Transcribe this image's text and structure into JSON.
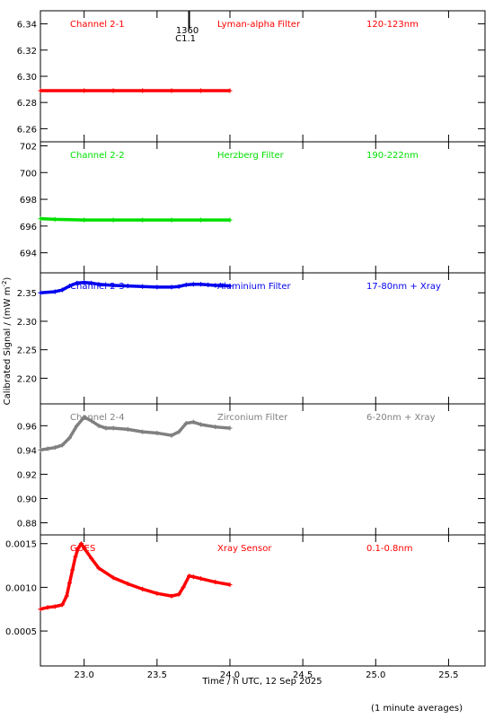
{
  "ylabel": "Calibrated Signal / (mW m",
  "ylabel_sup": "-2",
  "ylabel_close": ")",
  "xlabel": "Time / h UTC, 12 Sep 2025",
  "footnote": "(1 minute averages)",
  "event_marker": {
    "x": 23.72,
    "top": "1360",
    "bottom": "C1.1"
  },
  "chart_data": [
    {
      "type": "scatter",
      "channel": "Channel 2-1",
      "filter": "Lyman-alpha Filter",
      "range": "120-123nm",
      "color": "#ff0000",
      "ylim": [
        6.25,
        6.35
      ],
      "yticks": [
        6.26,
        6.28,
        6.3,
        6.32,
        6.34
      ],
      "ytick_labels": [
        "6.26",
        "6.28",
        "6.30",
        "6.32",
        "6.34"
      ],
      "xlim": [
        22.7,
        25.75
      ],
      "xticks": [
        23.0,
        23.5,
        24.0,
        24.5,
        25.0,
        25.5
      ],
      "xtick_labels": [
        "23.0",
        "23.5",
        "24.0",
        "24.5",
        "25.0",
        "25.5"
      ],
      "x": [
        22.7,
        23.0,
        23.2,
        23.4,
        23.6,
        23.8,
        24.0
      ],
      "y": [
        6.289,
        6.289,
        6.289,
        6.289,
        6.289,
        6.289,
        6.289
      ]
    },
    {
      "type": "scatter",
      "channel": "Channel 2-2",
      "filter": "Herzberg Filter",
      "range": "190-222nm",
      "color": "#00e000",
      "ylim": [
        692.5,
        702.3
      ],
      "yticks": [
        694,
        696,
        698,
        700,
        702
      ],
      "ytick_labels": [
        "694",
        "696",
        "698",
        "700",
        "702"
      ],
      "xlim": [
        22.7,
        25.75
      ],
      "xticks": [
        23.0,
        23.5,
        24.0,
        24.5,
        25.0,
        25.5
      ],
      "xtick_labels": [
        "23.0",
        "23.5",
        "24.0",
        "24.5",
        "25.0",
        "25.5"
      ],
      "x": [
        22.7,
        22.8,
        23.0,
        23.2,
        23.4,
        23.6,
        23.8,
        24.0
      ],
      "y": [
        696.55,
        696.5,
        696.45,
        696.45,
        696.45,
        696.45,
        696.45,
        696.45
      ]
    },
    {
      "type": "scatter",
      "channel": "Channel 2-3",
      "filter": "Aluminium Filter",
      "range": "17-80nm + Xray",
      "color": "#0000ee",
      "ylim": [
        2.155,
        2.385
      ],
      "yticks": [
        2.2,
        2.25,
        2.3,
        2.35
      ],
      "ytick_labels": [
        "2.20",
        "2.25",
        "2.30",
        "2.35"
      ],
      "xlim": [
        22.7,
        25.75
      ],
      "xticks": [
        23.0,
        23.5,
        24.0,
        24.5,
        25.0,
        25.5
      ],
      "xtick_labels": [
        "23.0",
        "23.5",
        "24.0",
        "24.5",
        "25.0",
        "25.5"
      ],
      "x": [
        22.7,
        22.8,
        22.85,
        22.9,
        22.95,
        23.0,
        23.05,
        23.1,
        23.2,
        23.3,
        23.4,
        23.5,
        23.6,
        23.65,
        23.7,
        23.75,
        23.8,
        23.85,
        23.9,
        23.95,
        24.0
      ],
      "y": [
        2.35,
        2.352,
        2.355,
        2.362,
        2.367,
        2.368,
        2.367,
        2.365,
        2.363,
        2.362,
        2.361,
        2.36,
        2.36,
        2.361,
        2.364,
        2.365,
        2.365,
        2.364,
        2.363,
        2.363,
        2.362
      ]
    },
    {
      "type": "scatter",
      "channel": "Channel 2-4",
      "filter": "Zirconium Filter",
      "range": "6-20nm + Xray",
      "color": "#808080",
      "ylim": [
        0.87,
        0.978
      ],
      "yticks": [
        0.88,
        0.9,
        0.92,
        0.94,
        0.96
      ],
      "ytick_labels": [
        "0.88",
        "0.90",
        "0.92",
        "0.94",
        "0.96"
      ],
      "xlim": [
        22.7,
        25.75
      ],
      "xticks": [
        23.0,
        23.5,
        24.0,
        24.5,
        25.0,
        25.5
      ],
      "xtick_labels": [
        "23.0",
        "23.5",
        "24.0",
        "24.5",
        "25.0",
        "25.5"
      ],
      "x": [
        22.7,
        22.75,
        22.8,
        22.85,
        22.9,
        22.95,
        23.0,
        23.05,
        23.1,
        23.15,
        23.2,
        23.3,
        23.4,
        23.5,
        23.6,
        23.65,
        23.7,
        23.75,
        23.8,
        23.9,
        24.0
      ],
      "y": [
        0.94,
        0.941,
        0.942,
        0.944,
        0.95,
        0.96,
        0.967,
        0.964,
        0.96,
        0.958,
        0.958,
        0.957,
        0.955,
        0.954,
        0.952,
        0.955,
        0.962,
        0.963,
        0.961,
        0.959,
        0.958
      ]
    },
    {
      "type": "scatter",
      "channel": "GOES",
      "filter": "Xray Sensor",
      "range": "0.1-0.8nm",
      "color": "#ff0000",
      "ylim": [
        0.0001,
        0.0016
      ],
      "yticks": [
        0.0005,
        0.001,
        0.0015
      ],
      "ytick_labels": [
        "0.0005",
        "0.0010",
        "0.0015"
      ],
      "xlim": [
        22.7,
        25.75
      ],
      "xticks": [
        23.0,
        23.5,
        24.0,
        24.5,
        25.0,
        25.5
      ],
      "xtick_labels": [
        "23.0",
        "23.5",
        "24.0",
        "24.5",
        "25.0",
        "25.5"
      ],
      "x": [
        22.7,
        22.75,
        22.8,
        22.85,
        22.88,
        22.9,
        22.92,
        22.94,
        22.96,
        22.98,
        23.0,
        23.05,
        23.1,
        23.2,
        23.3,
        23.4,
        23.5,
        23.6,
        23.65,
        23.68,
        23.72,
        23.75,
        23.8,
        23.9,
        24.0
      ],
      "y": [
        0.00075,
        0.00077,
        0.00078,
        0.0008,
        0.0009,
        0.00105,
        0.0012,
        0.00135,
        0.00145,
        0.0015,
        0.00145,
        0.00133,
        0.00122,
        0.00111,
        0.00104,
        0.00098,
        0.00093,
        0.0009,
        0.00092,
        0.001,
        0.00113,
        0.00112,
        0.0011,
        0.00106,
        0.00103
      ]
    }
  ]
}
